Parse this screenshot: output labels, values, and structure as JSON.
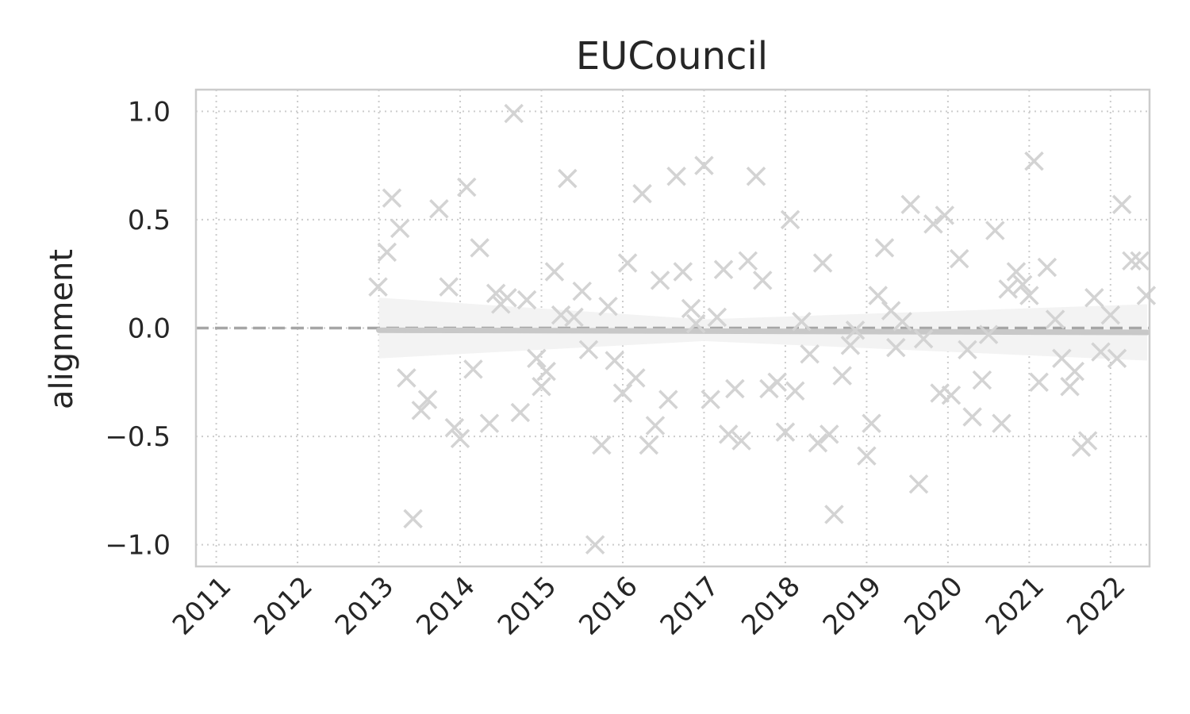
{
  "chart_data": {
    "type": "scatter",
    "title": "EUCouncil",
    "xlabel": "",
    "ylabel": "alignment",
    "xlim": [
      2010.75,
      2022.48
    ],
    "ylim": [
      -1.1,
      1.1
    ],
    "grid": true,
    "x_ticks": [
      2011,
      2012,
      2013,
      2014,
      2015,
      2016,
      2017,
      2018,
      2019,
      2020,
      2021,
      2022
    ],
    "x_tick_labels": [
      "2011",
      "2012",
      "2013",
      "2014",
      "2015",
      "2016",
      "2017",
      "2018",
      "2019",
      "2020",
      "2021",
      "2022"
    ],
    "y_ticks": [
      1.0,
      0.5,
      0.0,
      -0.5,
      -1.0
    ],
    "y_tick_labels": [
      "1.0",
      "0.5",
      "0.0",
      "−0.5",
      "−1.0"
    ],
    "zero_line": 0.0,
    "marker": "x",
    "colors": {
      "points": "#d3d3d3",
      "trend": "#c8c8c8",
      "band": "#f3f3f3",
      "zero_line": "#a6a6a6",
      "grid": "#cccccc",
      "frame": "#cccccc"
    },
    "trend": {
      "x": [
        2013.0,
        2022.45
      ],
      "y": [
        -0.01,
        -0.02
      ]
    },
    "band": {
      "x": [
        2013.0,
        2017.0,
        2022.45
      ],
      "upper": [
        0.14,
        0.04,
        0.11
      ],
      "lower": [
        -0.14,
        -0.06,
        -0.15
      ]
    },
    "points": [
      {
        "x": 2012.99,
        "y": 0.19
      },
      {
        "x": 2013.1,
        "y": 0.35
      },
      {
        "x": 2013.16,
        "y": 0.6
      },
      {
        "x": 2013.26,
        "y": 0.46
      },
      {
        "x": 2013.34,
        "y": -0.23
      },
      {
        "x": 2013.42,
        "y": -0.88
      },
      {
        "x": 2013.52,
        "y": -0.38
      },
      {
        "x": 2013.6,
        "y": -0.33
      },
      {
        "x": 2013.74,
        "y": 0.55
      },
      {
        "x": 2013.86,
        "y": 0.19
      },
      {
        "x": 2013.93,
        "y": -0.46
      },
      {
        "x": 2014.0,
        "y": -0.51
      },
      {
        "x": 2014.08,
        "y": 0.65
      },
      {
        "x": 2014.16,
        "y": -0.19
      },
      {
        "x": 2014.24,
        "y": 0.37
      },
      {
        "x": 2014.36,
        "y": -0.44
      },
      {
        "x": 2014.44,
        "y": 0.16
      },
      {
        "x": 2014.5,
        "y": 0.11
      },
      {
        "x": 2014.58,
        "y": 0.14
      },
      {
        "x": 2014.66,
        "y": 0.99
      },
      {
        "x": 2014.74,
        "y": -0.39
      },
      {
        "x": 2014.82,
        "y": 0.13
      },
      {
        "x": 2014.94,
        "y": -0.14
      },
      {
        "x": 2015.0,
        "y": -0.27
      },
      {
        "x": 2015.06,
        "y": -0.2
      },
      {
        "x": 2015.16,
        "y": 0.26
      },
      {
        "x": 2015.24,
        "y": 0.06
      },
      {
        "x": 2015.32,
        "y": 0.69
      },
      {
        "x": 2015.4,
        "y": 0.05
      },
      {
        "x": 2015.5,
        "y": 0.17
      },
      {
        "x": 2015.58,
        "y": -0.1
      },
      {
        "x": 2015.66,
        "y": -1.0
      },
      {
        "x": 2015.74,
        "y": -0.54
      },
      {
        "x": 2015.82,
        "y": 0.1
      },
      {
        "x": 2015.9,
        "y": -0.15
      },
      {
        "x": 2016.0,
        "y": -0.3
      },
      {
        "x": 2016.06,
        "y": 0.3
      },
      {
        "x": 2016.16,
        "y": -0.23
      },
      {
        "x": 2016.24,
        "y": 0.62
      },
      {
        "x": 2016.32,
        "y": -0.54
      },
      {
        "x": 2016.4,
        "y": -0.45
      },
      {
        "x": 2016.46,
        "y": 0.22
      },
      {
        "x": 2016.56,
        "y": -0.33
      },
      {
        "x": 2016.66,
        "y": 0.7
      },
      {
        "x": 2016.74,
        "y": 0.26
      },
      {
        "x": 2016.84,
        "y": 0.09
      },
      {
        "x": 2016.9,
        "y": 0.02
      },
      {
        "x": 2017.0,
        "y": 0.75
      },
      {
        "x": 2017.08,
        "y": -0.33
      },
      {
        "x": 2017.16,
        "y": 0.05
      },
      {
        "x": 2017.24,
        "y": 0.27
      },
      {
        "x": 2017.3,
        "y": -0.49
      },
      {
        "x": 2017.38,
        "y": -0.28
      },
      {
        "x": 2017.46,
        "y": -0.52
      },
      {
        "x": 2017.54,
        "y": 0.31
      },
      {
        "x": 2017.64,
        "y": 0.7
      },
      {
        "x": 2017.72,
        "y": 0.22
      },
      {
        "x": 2017.8,
        "y": -0.28
      },
      {
        "x": 2017.9,
        "y": -0.25
      },
      {
        "x": 2018.0,
        "y": -0.48
      },
      {
        "x": 2018.06,
        "y": 0.5
      },
      {
        "x": 2018.12,
        "y": -0.29
      },
      {
        "x": 2018.2,
        "y": 0.03
      },
      {
        "x": 2018.3,
        "y": -0.12
      },
      {
        "x": 2018.4,
        "y": -0.53
      },
      {
        "x": 2018.46,
        "y": 0.3
      },
      {
        "x": 2018.54,
        "y": -0.49
      },
      {
        "x": 2018.6,
        "y": -0.86
      },
      {
        "x": 2018.7,
        "y": -0.22
      },
      {
        "x": 2018.8,
        "y": -0.08
      },
      {
        "x": 2018.86,
        "y": -0.01
      },
      {
        "x": 2019.0,
        "y": -0.59
      },
      {
        "x": 2019.06,
        "y": -0.44
      },
      {
        "x": 2019.14,
        "y": 0.15
      },
      {
        "x": 2019.22,
        "y": 0.37
      },
      {
        "x": 2019.3,
        "y": 0.08
      },
      {
        "x": 2019.36,
        "y": -0.09
      },
      {
        "x": 2019.44,
        "y": 0.03
      },
      {
        "x": 2019.54,
        "y": 0.57
      },
      {
        "x": 2019.64,
        "y": -0.72
      },
      {
        "x": 2019.7,
        "y": -0.05
      },
      {
        "x": 2019.82,
        "y": 0.48
      },
      {
        "x": 2019.9,
        "y": -0.3
      },
      {
        "x": 2019.96,
        "y": 0.52
      },
      {
        "x": 2020.04,
        "y": -0.31
      },
      {
        "x": 2020.14,
        "y": 0.32
      },
      {
        "x": 2020.24,
        "y": -0.1
      },
      {
        "x": 2020.3,
        "y": -0.41
      },
      {
        "x": 2020.42,
        "y": -0.24
      },
      {
        "x": 2020.5,
        "y": -0.03
      },
      {
        "x": 2020.58,
        "y": 0.45
      },
      {
        "x": 2020.66,
        "y": -0.44
      },
      {
        "x": 2020.74,
        "y": 0.18
      },
      {
        "x": 2020.84,
        "y": 0.26
      },
      {
        "x": 2020.92,
        "y": 0.2
      },
      {
        "x": 2021.0,
        "y": 0.15
      },
      {
        "x": 2021.06,
        "y": 0.77
      },
      {
        "x": 2021.12,
        "y": -0.25
      },
      {
        "x": 2021.22,
        "y": 0.28
      },
      {
        "x": 2021.32,
        "y": 0.04
      },
      {
        "x": 2021.4,
        "y": -0.14
      },
      {
        "x": 2021.5,
        "y": -0.27
      },
      {
        "x": 2021.56,
        "y": -0.2
      },
      {
        "x": 2021.64,
        "y": -0.55
      },
      {
        "x": 2021.72,
        "y": -0.52
      },
      {
        "x": 2021.8,
        "y": 0.14
      },
      {
        "x": 2021.88,
        "y": -0.11
      },
      {
        "x": 2022.0,
        "y": 0.06
      },
      {
        "x": 2022.08,
        "y": -0.14
      },
      {
        "x": 2022.14,
        "y": 0.57
      },
      {
        "x": 2022.26,
        "y": 0.31
      },
      {
        "x": 2022.36,
        "y": 0.31
      },
      {
        "x": 2022.44,
        "y": 0.15
      }
    ]
  }
}
